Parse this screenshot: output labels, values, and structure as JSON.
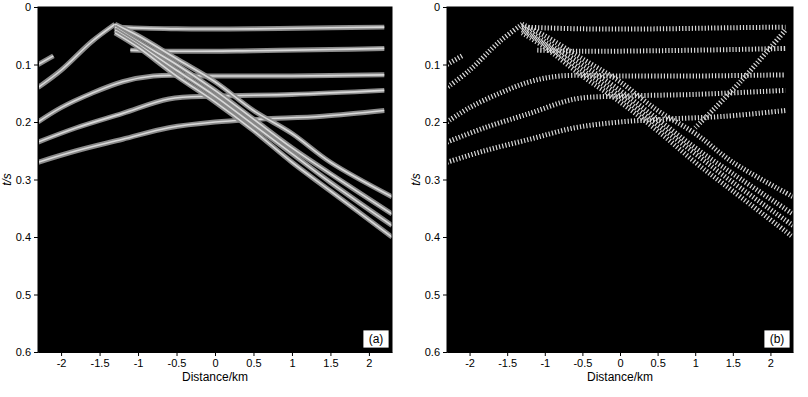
{
  "chart_data": [
    {
      "type": "line",
      "xlabel": "Distance/km",
      "ylabel": "t/s",
      "annotation": "(a)",
      "xlim": [
        -2.3,
        2.3
      ],
      "ylim": [
        0.6,
        0
      ],
      "xticks": [
        -2,
        -1.5,
        -1,
        -0.5,
        0,
        0.5,
        1,
        1.5,
        2
      ],
      "yticks": [
        0,
        0.1,
        0.2,
        0.3,
        0.4,
        0.5,
        0.6
      ],
      "color": "#d9d9d9",
      "line_style": "solid",
      "series": [
        {
          "x": [
            -1.3,
            -0.5,
            0.5,
            1.5,
            2.2
          ],
          "values": [
            0.035,
            0.038,
            0.038,
            0.036,
            0.035
          ]
        },
        {
          "x": [
            -1.1,
            -0.5,
            0.5,
            1.5,
            2.2
          ],
          "values": [
            0.075,
            0.077,
            0.076,
            0.074,
            0.072
          ]
        },
        {
          "x": [
            -2.3,
            -2.0,
            -1.6,
            -1.2,
            -0.8,
            0,
            1,
            2.2
          ],
          "values": [
            0.2,
            0.175,
            0.15,
            0.13,
            0.12,
            0.12,
            0.12,
            0.118
          ]
        },
        {
          "x": [
            -2.3,
            -1.8,
            -1.2,
            -0.6,
            0,
            1,
            2.2
          ],
          "values": [
            0.235,
            0.21,
            0.185,
            0.16,
            0.155,
            0.152,
            0.145
          ]
        },
        {
          "x": [
            -2.3,
            -1.8,
            -1.2,
            -0.6,
            0,
            0.6,
            1.4,
            2.2
          ],
          "values": [
            0.27,
            0.25,
            0.23,
            0.21,
            0.2,
            0.195,
            0.19,
            0.18
          ]
        },
        {
          "x": [
            -2.3,
            -2.1
          ],
          "values": [
            0.1,
            0.085
          ]
        },
        {
          "x": [
            -1.3,
            -1.6,
            -2.0,
            -2.3
          ],
          "values": [
            0.03,
            0.06,
            0.11,
            0.14
          ]
        },
        {
          "x": [
            -1.3,
            -1,
            -0.5,
            0,
            0.5,
            1,
            1.5,
            2.3
          ],
          "values": [
            0.03,
            0.05,
            0.09,
            0.13,
            0.18,
            0.22,
            0.27,
            0.33
          ]
        },
        {
          "x": [
            -1.3,
            -1,
            -0.5,
            0,
            0.5,
            1,
            1.5,
            2.3
          ],
          "values": [
            0.035,
            0.06,
            0.1,
            0.145,
            0.195,
            0.245,
            0.29,
            0.36
          ]
        },
        {
          "x": [
            -1.3,
            -1,
            -0.5,
            0,
            0.5,
            1,
            1.5,
            2.3
          ],
          "values": [
            0.04,
            0.065,
            0.11,
            0.155,
            0.205,
            0.255,
            0.305,
            0.38
          ]
        },
        {
          "x": [
            -1.3,
            -1,
            -0.5,
            0,
            0.5,
            1,
            1.5,
            2.3
          ],
          "values": [
            0.045,
            0.07,
            0.12,
            0.165,
            0.215,
            0.27,
            0.32,
            0.4
          ]
        }
      ]
    },
    {
      "type": "line",
      "xlabel": "Distance/km",
      "ylabel": "t/s",
      "annotation": "(b)",
      "xlim": [
        -2.3,
        2.3
      ],
      "ylim": [
        0.6,
        0
      ],
      "xticks": [
        -2,
        -1.5,
        -1,
        -0.5,
        0,
        0.5,
        1,
        1.5,
        2
      ],
      "yticks": [
        0,
        0.1,
        0.2,
        0.3,
        0.4,
        0.5,
        0.6
      ],
      "color": "#d9d9d9",
      "line_style": "dashed",
      "series": [
        {
          "x": [
            -1.3,
            -0.5,
            0.5,
            1.5,
            2.2
          ],
          "values": [
            0.035,
            0.038,
            0.038,
            0.036,
            0.035
          ]
        },
        {
          "x": [
            -1.1,
            -0.5,
            0.5,
            1.5,
            2.2
          ],
          "values": [
            0.075,
            0.077,
            0.076,
            0.074,
            0.072
          ]
        },
        {
          "x": [
            -2.3,
            -2.0,
            -1.6,
            -1.2,
            -0.8,
            0,
            1,
            2.2
          ],
          "values": [
            0.2,
            0.175,
            0.15,
            0.13,
            0.12,
            0.12,
            0.12,
            0.118
          ]
        },
        {
          "x": [
            -2.3,
            -1.8,
            -1.2,
            -0.6,
            0,
            1,
            2.2
          ],
          "values": [
            0.235,
            0.21,
            0.185,
            0.16,
            0.155,
            0.152,
            0.145
          ]
        },
        {
          "x": [
            -2.3,
            -1.8,
            -1.2,
            -0.6,
            0,
            0.6,
            1.4,
            2.2
          ],
          "values": [
            0.27,
            0.25,
            0.23,
            0.21,
            0.2,
            0.195,
            0.19,
            0.18
          ]
        },
        {
          "x": [
            -2.3,
            -2.1
          ],
          "values": [
            0.1,
            0.085
          ]
        },
        {
          "x": [
            -1.3,
            -1.6,
            -2.0,
            -2.3
          ],
          "values": [
            0.03,
            0.06,
            0.11,
            0.14
          ]
        },
        {
          "x": [
            -1.3,
            -1,
            -0.5,
            0,
            0.5,
            1,
            1.5,
            2.3
          ],
          "values": [
            0.03,
            0.05,
            0.09,
            0.13,
            0.18,
            0.22,
            0.27,
            0.33
          ]
        },
        {
          "x": [
            -1.3,
            -1,
            -0.5,
            0,
            0.5,
            1,
            1.5,
            2.3
          ],
          "values": [
            0.035,
            0.06,
            0.1,
            0.145,
            0.195,
            0.245,
            0.29,
            0.36
          ]
        },
        {
          "x": [
            -1.3,
            -1,
            -0.5,
            0,
            0.5,
            1,
            1.5,
            2.3
          ],
          "values": [
            0.04,
            0.065,
            0.11,
            0.155,
            0.205,
            0.255,
            0.305,
            0.38
          ]
        },
        {
          "x": [
            -1.3,
            -1,
            -0.5,
            0,
            0.5,
            1,
            1.5,
            2.3
          ],
          "values": [
            0.045,
            0.07,
            0.12,
            0.165,
            0.215,
            0.27,
            0.32,
            0.4
          ]
        },
        {
          "x": [
            1.0,
            1.6,
            2.2
          ],
          "values": [
            0.21,
            0.13,
            0.04
          ]
        }
      ]
    }
  ]
}
